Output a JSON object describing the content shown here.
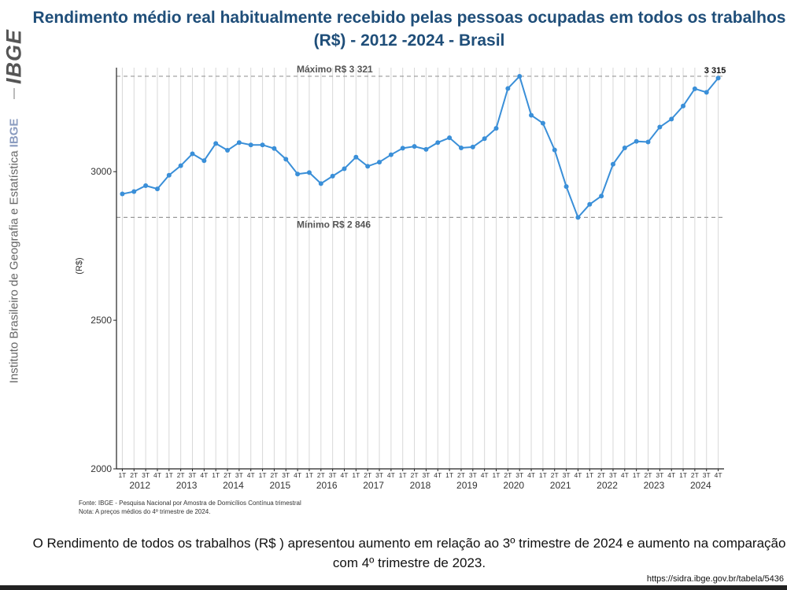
{
  "sidebar": {
    "logo": "IBGE",
    "institute_name": "Instituto Brasileiro de Geografia e Estatística",
    "institute_abbr": "IBGE"
  },
  "page": {
    "title": "Rendimento médio real habitualmente recebido pelas pessoas ocupadas em todos os trabalhos (R$) - 2012 -2024 - Brasil",
    "source_line1": "Fonte: IBGE - Pesquisa Nacional por Amostra de Domicílios Contínua trimestral",
    "source_line2": "Nota: A preços médios do 4º trimestre de 2024.",
    "caption": "O Rendimento de todos os trabalhos (R$ ) apresentou aumento em relação ao 3º trimestre de 2024 e aumento na comparação com 4º trimestre de 2023.",
    "url": "https://sidra.ibge.gov.br/tabela/5436"
  },
  "colors": {
    "line": "#3a8fd8",
    "title": "#1f4e79",
    "reference": "#999999"
  },
  "chart_data": {
    "type": "line",
    "ylabel": "(R$)",
    "ylim": [
      2000,
      3350
    ],
    "yticks": [
      2000,
      2500,
      3000
    ],
    "grid": "vertical",
    "quarter_labels": [
      "1T",
      "2T",
      "3T",
      "4T"
    ],
    "years": [
      "2012",
      "2013",
      "2014",
      "2015",
      "2016",
      "2017",
      "2018",
      "2019",
      "2020",
      "2021",
      "2022",
      "2023",
      "2024"
    ],
    "values": [
      2925,
      2933,
      2953,
      2942,
      2988,
      3020,
      3060,
      3037,
      3095,
      3072,
      3098,
      3090,
      3090,
      3078,
      3042,
      2992,
      2997,
      2960,
      2985,
      3010,
      3049,
      3018,
      3032,
      3057,
      3079,
      3085,
      3075,
      3098,
      3114,
      3080,
      3083,
      3111,
      3146,
      3280,
      3321,
      3190,
      3163,
      3073,
      2950,
      2846,
      2890,
      2918,
      3025,
      3080,
      3102,
      3100,
      3150,
      3177,
      3221,
      3279,
      3267,
      3315
    ],
    "max_label": "Máximo R$ 3 321",
    "max_value": 3321,
    "min_label": "Mínimo R$ 2 846",
    "min_value": 2846,
    "last_value_label": "3 315"
  }
}
